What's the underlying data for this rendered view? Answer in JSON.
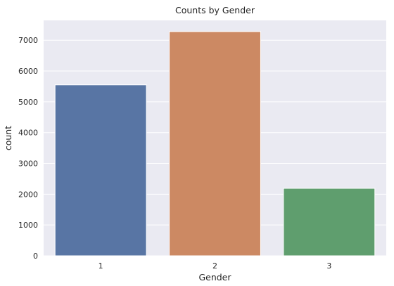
{
  "chart_data": {
    "type": "bar",
    "title": "Counts by Gender",
    "xlabel": "Gender",
    "ylabel": "count",
    "categories": [
      "1",
      "2",
      "3"
    ],
    "values": [
      5550,
      7280,
      2190
    ],
    "colors": [
      "#5875a4",
      "#cc8963",
      "#5f9e6e"
    ],
    "ylim": [
      0,
      7644
    ],
    "yticks": [
      0,
      1000,
      2000,
      3000,
      4000,
      5000,
      6000,
      7000
    ],
    "grid": true,
    "background": "#eaeaf2",
    "legend": "none"
  }
}
